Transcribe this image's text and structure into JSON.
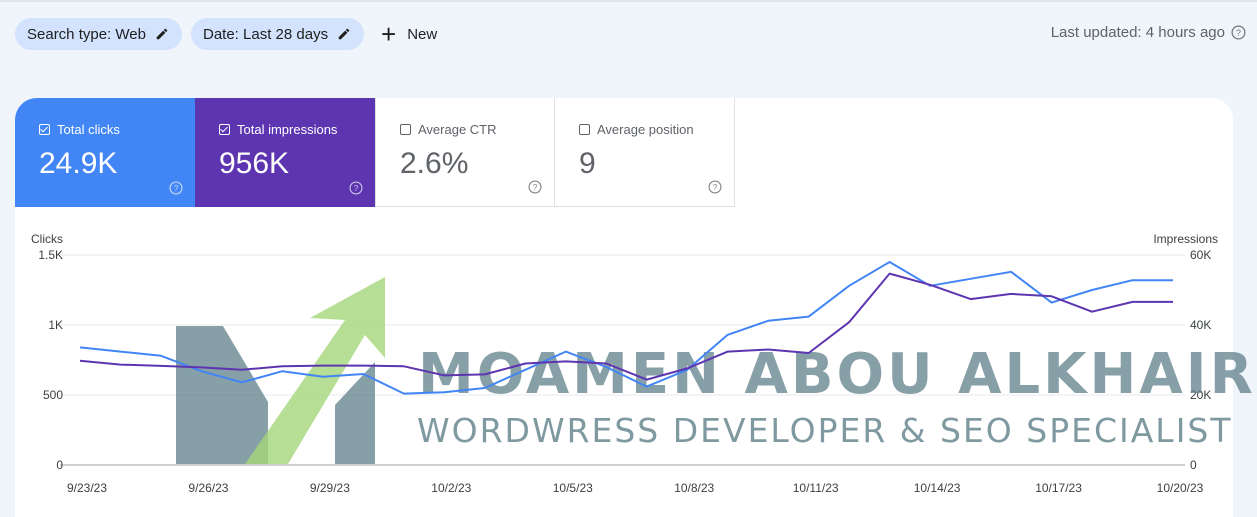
{
  "filters": {
    "search_type": "Search type: Web",
    "date": "Date: Last 28 days",
    "new_label": "New"
  },
  "last_updated": "Last updated: 4 hours ago",
  "metrics": [
    {
      "label": "Total clicks",
      "value": "24.9K",
      "checked": true,
      "color": "#4285f4"
    },
    {
      "label": "Total impressions",
      "value": "956K",
      "checked": true,
      "color": "#5e35b1"
    },
    {
      "label": "Average CTR",
      "value": "2.6%",
      "checked": false,
      "color": "#ffffff"
    },
    {
      "label": "Average position",
      "value": "9",
      "checked": false,
      "color": "#ffffff"
    }
  ],
  "watermark": {
    "line1": "MOAMEN ABOU ALKHAIR",
    "line2": "WORDWRESS DEVELOPER & SEO SPECIALIST"
  },
  "chart_data": {
    "type": "line",
    "left_axis": {
      "label": "Clicks",
      "ticks": [
        "0",
        "500",
        "1K",
        "1.5K"
      ],
      "ylim": [
        0,
        1500
      ]
    },
    "right_axis": {
      "label": "Impressions",
      "ticks": [
        "0",
        "20K",
        "40K",
        "60K"
      ],
      "ylim": [
        0,
        60000
      ]
    },
    "x_tick_labels": [
      "9/23/23",
      "9/26/23",
      "9/29/23",
      "10/2/23",
      "10/5/23",
      "10/8/23",
      "10/11/23",
      "10/14/23",
      "10/17/23",
      "10/20/23"
    ],
    "x": [
      "9/23/23",
      "9/24/23",
      "9/25/23",
      "9/26/23",
      "9/27/23",
      "9/28/23",
      "9/29/23",
      "9/30/23",
      "10/1/23",
      "10/2/23",
      "10/3/23",
      "10/4/23",
      "10/5/23",
      "10/6/23",
      "10/7/23",
      "10/8/23",
      "10/9/23",
      "10/10/23",
      "10/11/23",
      "10/12/23",
      "10/13/23",
      "10/14/23",
      "10/15/23",
      "10/16/23",
      "10/17/23",
      "10/18/23",
      "10/19/23",
      "10/20/23"
    ],
    "grid": true,
    "series": [
      {
        "name": "Total clicks",
        "axis": "left",
        "color": "#4285f4",
        "values": [
          840,
          810,
          780,
          670,
          590,
          670,
          630,
          650,
          510,
          520,
          550,
          680,
          810,
          700,
          560,
          680,
          930,
          1030,
          1060,
          1280,
          1450,
          1280,
          1330,
          1380,
          1160,
          1250,
          1320,
          1320
        ]
      },
      {
        "name": "Total impressions",
        "axis": "right",
        "color": "#5e35b1",
        "values": [
          29800,
          28700,
          28300,
          27900,
          27200,
          28200,
          28400,
          28400,
          28200,
          25600,
          25900,
          29000,
          29600,
          29000,
          24400,
          27600,
          32400,
          33000,
          32000,
          40800,
          54700,
          51500,
          47400,
          48900,
          48200,
          43800,
          46600,
          46600
        ]
      }
    ]
  }
}
